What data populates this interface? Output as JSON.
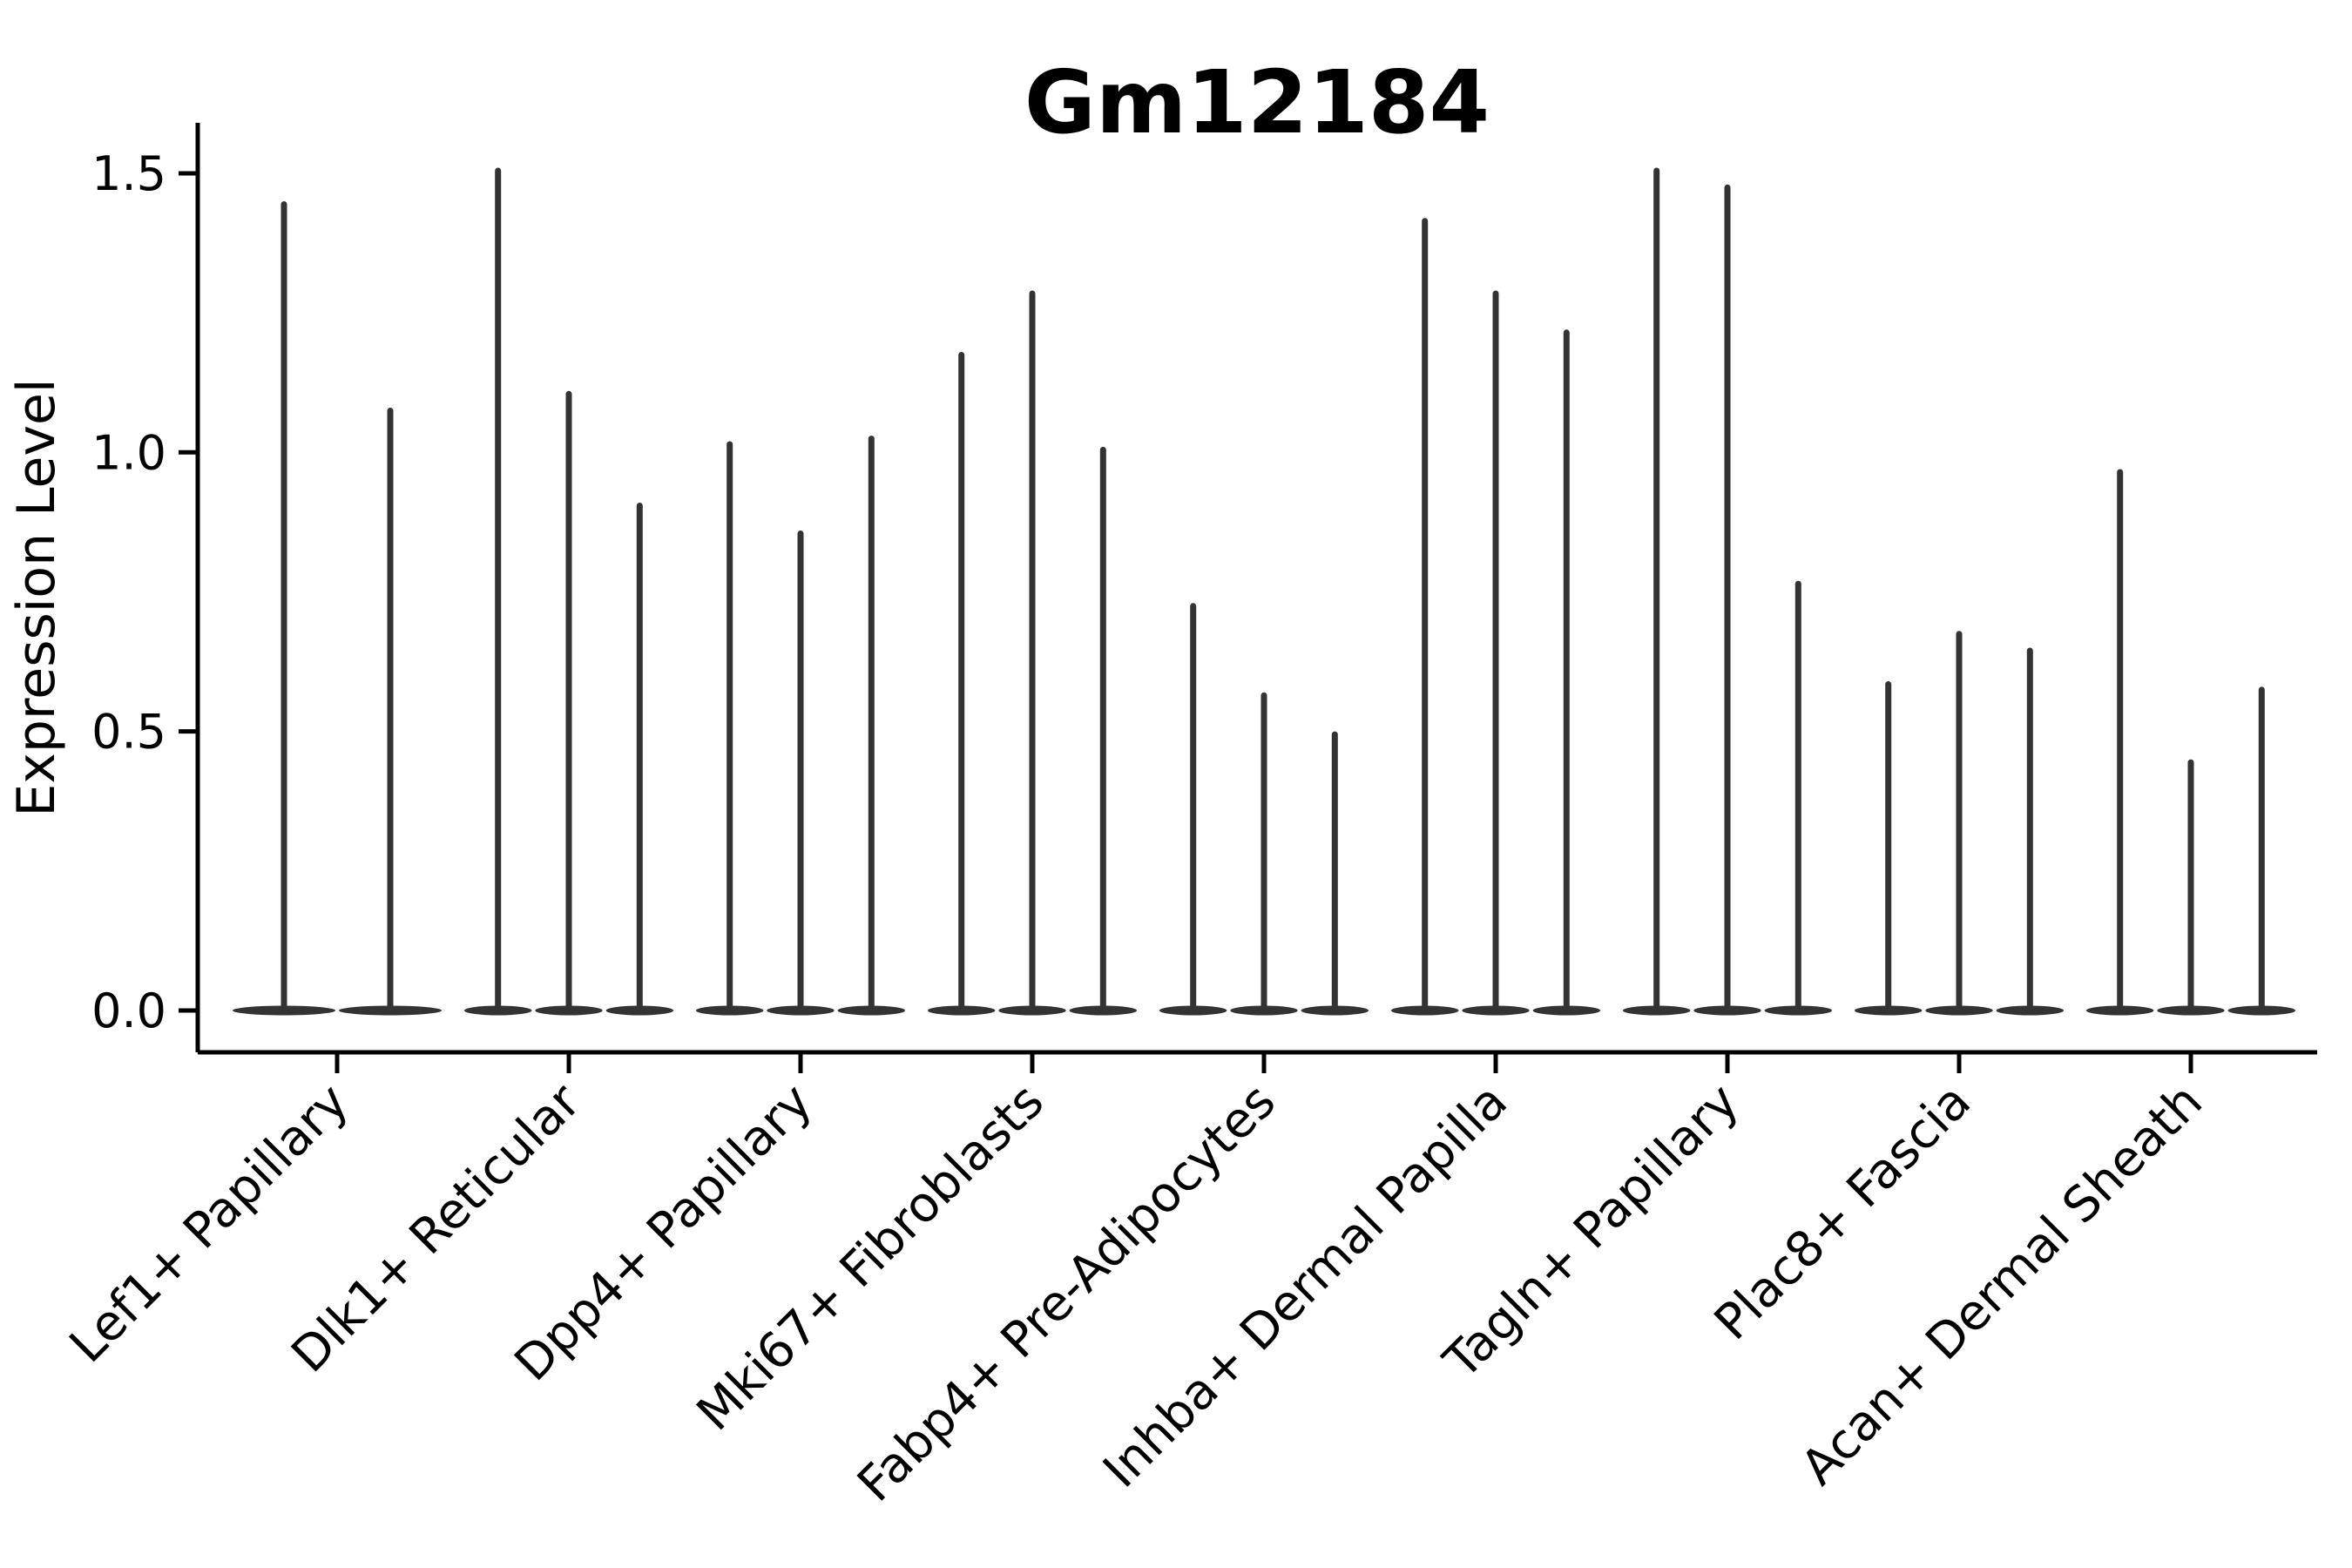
{
  "figure": {
    "title": "Gm12184",
    "ylabel": "Expression Level"
  },
  "chart_data": {
    "type": "violin",
    "title": "Gm12184",
    "xlabel": "",
    "ylabel": "Expression Level",
    "categories": [
      "Lef1+ Papillary",
      "Dlk1+ Reticular",
      "Dpp4+ Papillary",
      "Mki67+ Fibroblasts",
      "Fabp4+ Pre-Adipocytes",
      "Inhba+ Dermal Papilla",
      "Tagln+ Papillary",
      "Plac8+ Fascia",
      "Acan+ Dermal Sheath"
    ],
    "series_description": "Each category shows narrow violins (one per sample/split); values are the maximum expression level reached by each violin spike; all violins have a wide flat base at 0.",
    "violin_max_values": [
      [
        1.45,
        1.08
      ],
      [
        1.51,
        1.11,
        0.91
      ],
      [
        1.02,
        0.86,
        1.03
      ],
      [
        1.18,
        1.29,
        1.01
      ],
      [
        0.73,
        0.57,
        0.5
      ],
      [
        1.42,
        1.29,
        1.22
      ],
      [
        1.51,
        1.48,
        0.77
      ],
      [
        0.59,
        0.68,
        0.65
      ],
      [
        0.97,
        0.45,
        0.58
      ]
    ],
    "yticks": [
      0.0,
      0.5,
      1.0,
      1.5
    ],
    "ytick_labels": [
      "0.0",
      "0.5",
      "1.0",
      "1.5"
    ],
    "ylim": [
      -0.075,
      1.59
    ],
    "grid": false,
    "legend": "none",
    "violin_color": "#333333",
    "axis_color": "#000000"
  }
}
